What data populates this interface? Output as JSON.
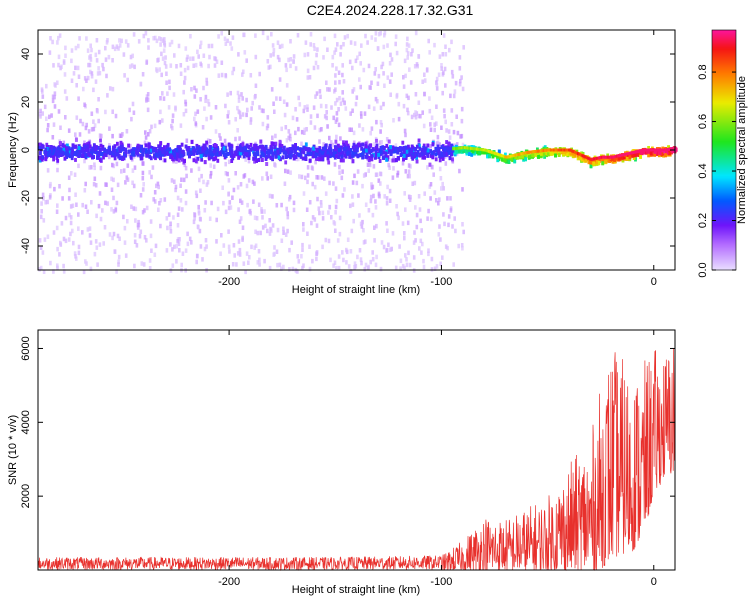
{
  "title": "C2E4.2024.228.17.32.G31",
  "chart_data": [
    {
      "type": "heatmap",
      "xlabel": "Height of straight line (km)",
      "ylabel": "Frequency (Hz)",
      "xlim": [
        -290,
        10
      ],
      "ylim": [
        -50,
        50
      ],
      "xticks": [
        -200,
        -100,
        0
      ],
      "yticks": [
        -40,
        -20,
        0,
        20,
        40
      ],
      "colorbar": {
        "label": "Normalized spectral amplitude",
        "range": [
          0,
          0.97
        ],
        "ticks": [
          0.0,
          0.2,
          0.4,
          0.6,
          0.8
        ],
        "tick_labels": [
          "0.0",
          "0.2",
          "0.4",
          "0.6",
          "0.8"
        ]
      },
      "ridge": {
        "x": [
          -290,
          -100,
          -90,
          -80,
          -70,
          -60,
          -50,
          -40,
          -35,
          -30,
          -25,
          -20,
          -15,
          -10,
          -5,
          0,
          5,
          10
        ],
        "y": [
          0,
          0,
          1,
          0,
          -3,
          -1,
          0,
          0,
          -2,
          -4,
          -3,
          -3,
          -2,
          -1,
          0,
          0,
          0,
          1
        ]
      },
      "noise_region_x": [
        -290,
        -90
      ],
      "background_color": "#ffffff"
    },
    {
      "type": "line",
      "xlabel": "Height of straight line (km)",
      "ylabel": "SNR (10 * v/v)",
      "xlim": [
        -290,
        10
      ],
      "ylim": [
        0,
        6500
      ],
      "xticks": [
        -200,
        -100,
        0
      ],
      "yticks": [
        2000,
        4000,
        6000
      ],
      "series": [
        {
          "color": "#e8302c",
          "envelope_x": [
            -290,
            -250,
            -200,
            -150,
            -120,
            -100,
            -90,
            -80,
            -70,
            -60,
            -50,
            -40,
            -30,
            -25,
            -20,
            -15,
            -10,
            -5,
            0,
            5,
            10
          ],
          "envelope_low": [
            0,
            0,
            0,
            0,
            0,
            0,
            0,
            0,
            0,
            0,
            0,
            0,
            0,
            0,
            300,
            400,
            500,
            900,
            2000,
            2500,
            2600
          ],
          "envelope_high": [
            350,
            350,
            350,
            350,
            380,
            400,
            800,
            1500,
            1400,
            1700,
            2000,
            2900,
            3600,
            5000,
            6100,
            5800,
            5300,
            5600,
            6050,
            5900,
            6400
          ]
        }
      ]
    }
  ]
}
